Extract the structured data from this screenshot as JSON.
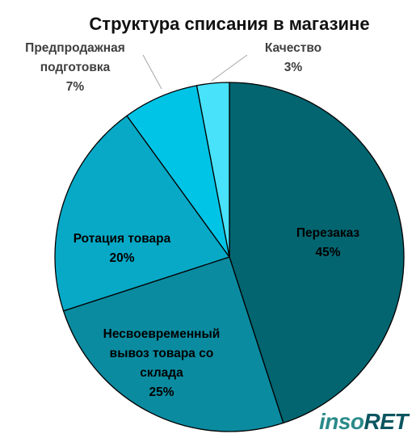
{
  "chart_data": {
    "type": "pie",
    "title": "Структура списания в магазине",
    "slices": [
      {
        "label": "Перезаказ",
        "value": 45,
        "value_label": "45%",
        "color": "#026570",
        "text_color": "#000000"
      },
      {
        "label": "Несвоевременный вывоз товара со склада",
        "value": 25,
        "value_label": "25%",
        "color": "#0b8ba0",
        "text_color": "#000000"
      },
      {
        "label": "Ротация товара",
        "value": 20,
        "value_label": "20%",
        "color": "#08a9c6",
        "text_color": "#000000"
      },
      {
        "label": "Предпродажная подготовка",
        "value": 7,
        "value_label": "7%",
        "color": "#00c4e6",
        "text_color": "#404040"
      },
      {
        "label": "Качество",
        "value": 3,
        "value_label": "3%",
        "color": "#48e2fb",
        "text_color": "#404040"
      }
    ],
    "start_angle_deg": 0,
    "direction": "clockwise",
    "legend": "none"
  },
  "logo": {
    "text_a": "inso",
    "text_b": "RET"
  }
}
